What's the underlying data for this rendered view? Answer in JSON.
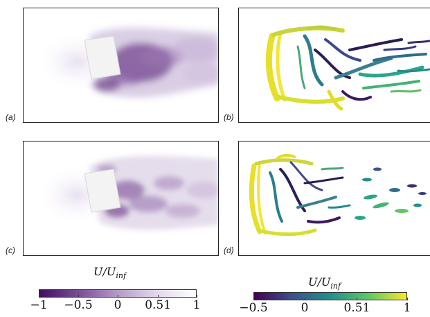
{
  "panels": [
    {
      "label": "(a)"
    },
    {
      "label": "(b)"
    },
    {
      "label": "(c)"
    },
    {
      "label": "(d)"
    }
  ],
  "colorbar_left": {
    "title": "U/U",
    "title_sub": "inf",
    "ticks": [
      "−1",
      "−0.5",
      "0",
      "0.51",
      "1"
    ],
    "tick_values": [
      -1,
      -0.5,
      0,
      0.51,
      1
    ],
    "range": [
      -1,
      1
    ],
    "colormap": "purples",
    "colors": [
      "#3f0f5e",
      "#7a4d93",
      "#b49ac7",
      "#e2d8ec",
      "#ffffff"
    ]
  },
  "colorbar_right": {
    "title": "U/U",
    "title_sub": "inf",
    "ticks": [
      "−0.5",
      "0",
      "0.51",
      "1"
    ],
    "tick_values": [
      -0.5,
      0,
      0.51,
      1
    ],
    "range": [
      -0.5,
      1
    ],
    "colormap": "viridis",
    "colors": [
      "#440154",
      "#3b528b",
      "#21908d",
      "#5dc863",
      "#fde725"
    ]
  }
}
